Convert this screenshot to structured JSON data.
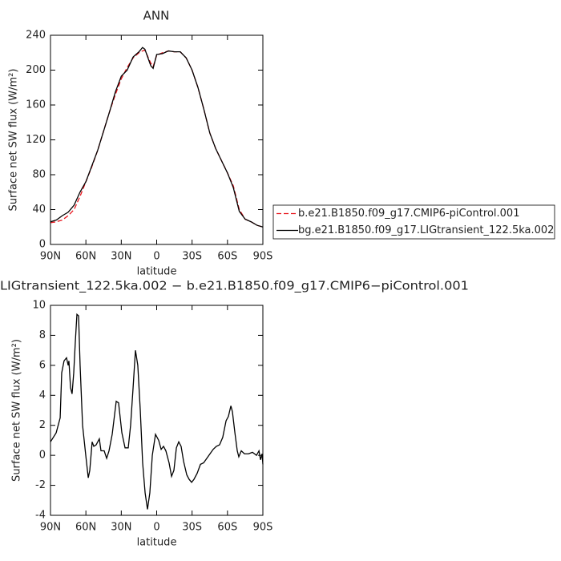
{
  "chart_data": [
    {
      "type": "line",
      "title": "ANN",
      "xlabel": "latitude",
      "ylabel": "Surface net SW flux (W/m²)",
      "x": [
        90,
        85,
        80,
        75,
        70,
        65,
        60,
        55,
        50,
        45,
        40,
        35,
        30,
        25,
        20,
        15,
        12,
        10,
        5,
        3,
        0,
        -5,
        -10,
        -15,
        -20,
        -25,
        -30,
        -35,
        -40,
        -45,
        -50,
        -55,
        -60,
        -65,
        -70,
        -75,
        -80,
        -85,
        -90
      ],
      "series": [
        {
          "name": "b.e21.B1850.f09_g17.CMIP6-piControl.001",
          "color": "#e8141c",
          "dash": true,
          "values": [
            25,
            26,
            28,
            33,
            40,
            55,
            72,
            89,
            108,
            130,
            152,
            172,
            190,
            203,
            214,
            220,
            222,
            223,
            208,
            204,
            217,
            220,
            222,
            221,
            221,
            214,
            200,
            180,
            155,
            128,
            110,
            96,
            82,
            67,
            40,
            29,
            26,
            22,
            20
          ]
        },
        {
          "name": "bg.e21.B1850.f09_g17.LIGtransient_122.5ka.002",
          "color": "#000000",
          "dash": false,
          "values": [
            26,
            28,
            33,
            37,
            45,
            60,
            72,
            90,
            108,
            130,
            152,
            175,
            193,
            200,
            215,
            221,
            226,
            224,
            205,
            202,
            218,
            219,
            222,
            221,
            221,
            214,
            200,
            180,
            155,
            128,
            110,
            96,
            82,
            65,
            38,
            29,
            26,
            22,
            20
          ]
        }
      ],
      "xlim": [
        90,
        -90
      ],
      "xticks": [
        {
          "value": 90,
          "label": "90N"
        },
        {
          "value": 60,
          "label": "60N"
        },
        {
          "value": 30,
          "label": "30N"
        },
        0,
        {
          "value": -30,
          "label": "30S"
        },
        {
          "value": -60,
          "label": "60S"
        },
        {
          "value": -90,
          "label": "90S"
        }
      ],
      "ylim": [
        0,
        240
      ],
      "yticks": [
        0,
        40,
        80,
        120,
        160,
        200,
        240
      ],
      "grid": false,
      "legend_position": "right"
    },
    {
      "type": "line",
      "title": "LIGtransient_122.5ka.002 − b.e21.B1850.f09_g17.CMIP6−piControl.001",
      "xlabel": "latitude",
      "ylabel": "Surface net SW flux (W/m²)",
      "x": [
        90,
        85.2,
        81.8,
        80.5,
        78.5,
        76.4,
        75,
        74.4,
        73,
        71.7,
        70.3,
        69,
        67.6,
        66.2,
        64.9,
        62.8,
        60.1,
        58,
        56.7,
        54.7,
        53.3,
        51.3,
        48.6,
        47.2,
        44.5,
        42.4,
        40.4,
        37.7,
        34.3,
        32.3,
        29.5,
        26.8,
        24.1,
        22.1,
        20,
        18,
        16,
        13.9,
        11.9,
        9.8,
        7.8,
        5.8,
        3.7,
        1,
        -1.7,
        -3.8,
        -5.8,
        -7.8,
        -10.5,
        -12.6,
        -14.6,
        -16.7,
        -18.7,
        -20.7,
        -22.8,
        -25.5,
        -27.5,
        -29.6,
        -31.6,
        -34.3,
        -37.1,
        -39.8,
        -42.5,
        -45.2,
        -47.9,
        -50.6,
        -53.3,
        -56,
        -58.8,
        -60.8,
        -62.9,
        -64.2,
        -66.3,
        -68.3,
        -69.6,
        -71.7,
        -74.4,
        -77.8,
        -81.2,
        -84.6,
        -86.7,
        -88,
        -89.3,
        -90
      ],
      "values": [
        0.9,
        1.5,
        2.5,
        5.5,
        6.3,
        6.5,
        6.0,
        6.3,
        4.5,
        4.1,
        5.5,
        7.5,
        9.4,
        9.3,
        6,
        2,
        0,
        -1.5,
        -1.0,
        0.9,
        0.6,
        0.7,
        1.1,
        0.3,
        0.3,
        -0.2,
        0.3,
        1.4,
        3.6,
        3.5,
        1.5,
        0.5,
        0.5,
        2,
        4.5,
        7.0,
        6.0,
        3,
        -0.5,
        -2.5,
        -3.6,
        -2.5,
        0,
        1.4,
        1.0,
        0.4,
        0.6,
        0.3,
        -0.5,
        -1.4,
        -1.0,
        0.5,
        0.9,
        0.6,
        -0.4,
        -1.3,
        -1.6,
        -1.8,
        -1.6,
        -1.2,
        -0.6,
        -0.5,
        -0.2,
        0.1,
        0.4,
        0.6,
        0.7,
        1.2,
        2.3,
        2.6,
        3.3,
        2.9,
        1.5,
        0.3,
        -0.1,
        0.3,
        0.1,
        0.1,
        0.2,
        0.0,
        0.3,
        -0.3,
        0.1,
        -0.6
      ],
      "color": "#000000",
      "xlim": [
        90,
        -90
      ],
      "xticks": [
        {
          "value": 90,
          "label": "90N"
        },
        {
          "value": 60,
          "label": "60N"
        },
        {
          "value": 30,
          "label": "30N"
        },
        0,
        {
          "value": -30,
          "label": "30S"
        },
        {
          "value": -60,
          "label": "60S"
        },
        {
          "value": -90,
          "label": "90S"
        }
      ],
      "ylim": [
        -4,
        10
      ],
      "yticks": [
        -4,
        -2,
        0,
        2,
        4,
        6,
        8,
        10
      ],
      "grid": false
    }
  ]
}
